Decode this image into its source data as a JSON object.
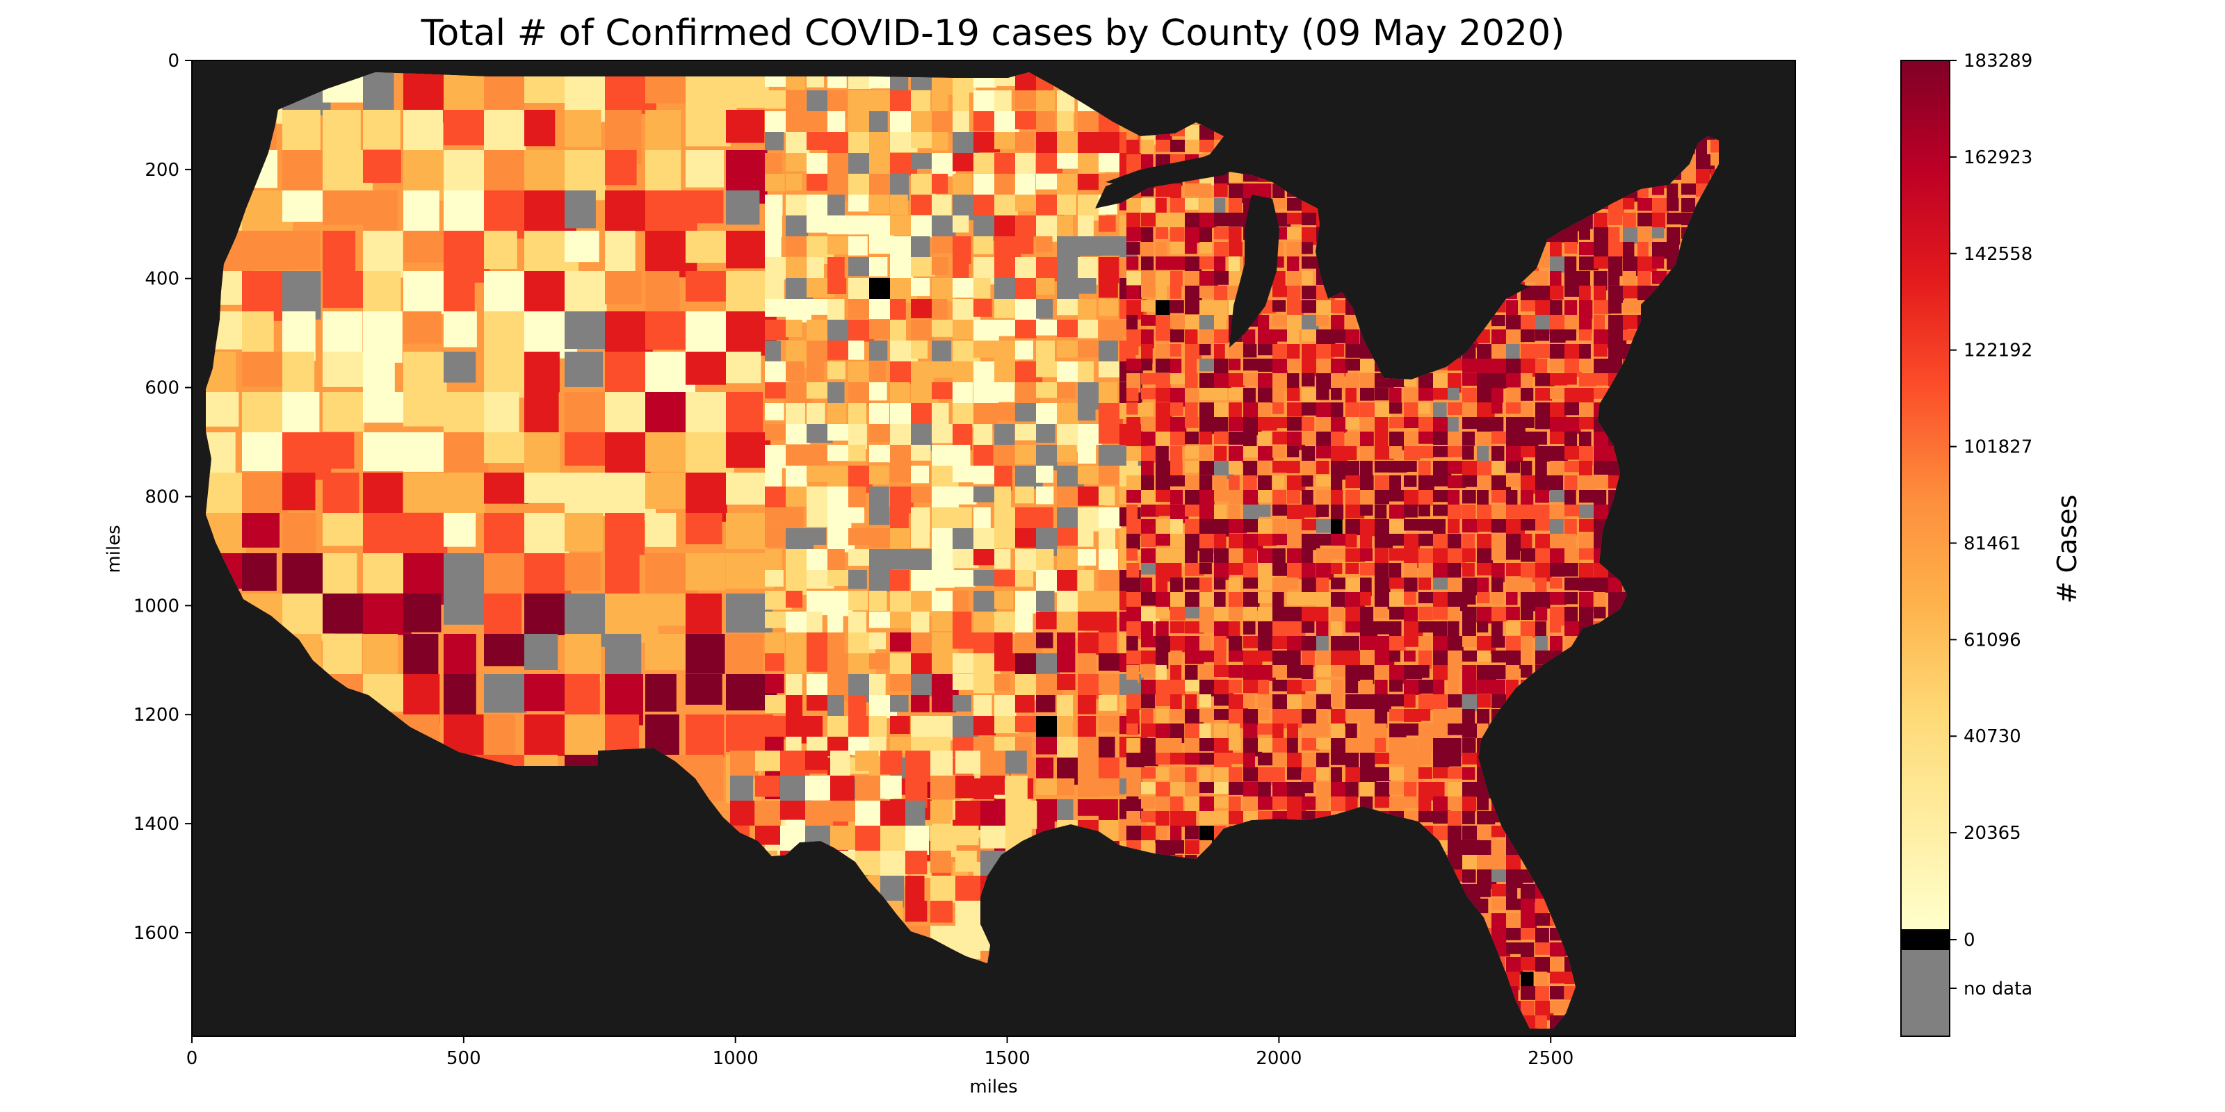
{
  "title": "Total # of Confirmed COVID-19 cases by County (09 May 2020)",
  "map": {
    "xlabel": "miles",
    "ylabel": "miles",
    "x_ticks": [
      "0",
      "500",
      "1000",
      "1500",
      "2000",
      "2500"
    ],
    "y_ticks": [
      "0",
      "200",
      "400",
      "600",
      "800",
      "1000",
      "1200",
      "1400",
      "1600"
    ],
    "xlim": [
      0,
      2950
    ],
    "ylim": [
      0,
      1790
    ],
    "y_inverted": true,
    "background_color": "#1a1a1a",
    "no_data_color": "#808080",
    "zero_color": "#000000"
  },
  "colorbar": {
    "label": "# Cases",
    "ticks": [
      "183289",
      "162923",
      "142558",
      "122192",
      "101827",
      "81461",
      "61096",
      "40730",
      "20365"
    ],
    "zero_label": "0",
    "no_data_label": "no data",
    "min": 0,
    "max": 183289,
    "colormap": [
      "#ffffcc",
      "#ffeda0",
      "#fed976",
      "#feb24c",
      "#fd8d3c",
      "#fc4e2a",
      "#e31a1c",
      "#bd0026",
      "#800026"
    ]
  }
}
